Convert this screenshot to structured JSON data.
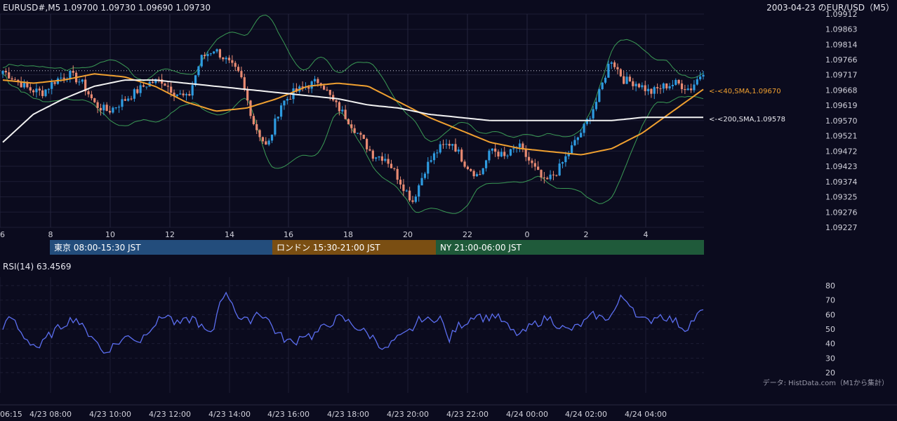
{
  "header": {
    "symbol_line": "EURUSD#,M5 1.09700 1.09730 1.09690 1.09730",
    "date_title": "2003-04-23 のEUR/USD（M5）"
  },
  "price_axis": {
    "ticks": [
      "1.09912",
      "1.09863",
      "1.09814",
      "1.09766",
      "1.09717",
      "1.09668",
      "1.09619",
      "1.09570",
      "1.09521",
      "1.09472",
      "1.09423",
      "1.09374",
      "1.09325",
      "1.09276",
      "1.09227"
    ]
  },
  "hour_axis": {
    "ticks": [
      "6",
      "8",
      "10",
      "12",
      "14",
      "16",
      "18",
      "20",
      "22",
      "0",
      "2",
      "4"
    ]
  },
  "sessions": [
    {
      "label": "東京 08:00-15:30 JST",
      "color": "#234d7c"
    },
    {
      "label": "ロンドン 15:30-21:00 JST",
      "color": "#7a4e12"
    },
    {
      "label": "NY 21:00-06:00 JST",
      "color": "#1f5a3a"
    }
  ],
  "rsi": {
    "title": "RSI(14) 63.4569",
    "ticks": [
      "80",
      "70",
      "60",
      "50",
      "40",
      "30",
      "20"
    ],
    "line_color": "#5b6ef0"
  },
  "credit": "データ: HistData.com（M1から集計）",
  "time_axis": {
    "ticks": [
      "06:15",
      "4/23 08:00",
      "4/23 10:00",
      "4/23 12:00",
      "4/23 14:00",
      "4/23 16:00",
      "4/23 18:00",
      "4/23 20:00",
      "4/23 22:00",
      "4/24 00:00",
      "4/24 02:00",
      "4/24 04:00"
    ]
  },
  "annotations": {
    "sma40_label": "<-<40,SMA,1.09670",
    "sma200_label": "<-<200,SMA,1.09578"
  },
  "colors": {
    "bull": "#2e9be0",
    "bear": "#e88a72",
    "sma40": "#f0a030",
    "sma200": "#f2f2f2",
    "bollinger": "#3a9a55",
    "grid": "#2a2a40"
  },
  "chart_data": [
    {
      "type": "candlestick",
      "title": "EURUSD#,M5 1.09700 1.09730 1.09690 1.09730",
      "x_label": "hour",
      "ylim": [
        1.09227,
        1.09912
      ],
      "series": [
        {
          "name": "40,SMA",
          "last": 1.0967,
          "values": [
            1.097,
            1.0969,
            1.097,
            1.0972,
            1.0971,
            1.0968,
            1.0963,
            1.096,
            1.0961,
            1.0964,
            1.0968,
            1.0969,
            1.0968,
            1.0963,
            1.0958,
            1.0954,
            1.095,
            1.0948,
            1.0947,
            1.0946,
            1.0948,
            1.0953,
            1.096,
            1.0967
          ]
        },
        {
          "name": "200,SMA",
          "last": 1.09578,
          "values": [
            1.095,
            1.0959,
            1.0964,
            1.0968,
            1.097,
            1.097,
            1.0969,
            1.0968,
            1.0967,
            1.0966,
            1.0965,
            1.0964,
            1.0962,
            1.0961,
            1.0959,
            1.0958,
            1.0957,
            1.0957,
            1.0957,
            1.0957,
            1.0957,
            1.0958,
            1.0958,
            1.0958
          ]
        }
      ],
      "close_path": [
        1.0973,
        1.097,
        1.0967,
        1.0966,
        1.097,
        1.0972,
        1.0969,
        1.0962,
        1.096,
        1.0963,
        1.0966,
        1.0969,
        1.097,
        1.0966,
        1.0964,
        1.0977,
        1.098,
        1.0976,
        1.0971,
        1.0956,
        1.0948,
        1.0962,
        1.0966,
        1.0968,
        1.097,
        1.0963,
        1.0958,
        1.0952,
        1.0946,
        1.0945,
        1.0938,
        1.0931,
        1.0942,
        1.0948,
        1.095,
        1.0943,
        1.0939,
        1.0948,
        1.0945,
        1.0949,
        1.0943,
        1.0937,
        1.0941,
        1.0948,
        1.0955,
        1.0964,
        1.0977,
        1.097,
        1.0969,
        1.0966,
        1.0968,
        1.0969,
        1.0967,
        1.0973
      ]
    },
    {
      "type": "line",
      "title": "RSI(14) 63.4569",
      "ylim": [
        20,
        80
      ],
      "series": [
        {
          "name": "RSI(14)",
          "values": [
            52,
            58,
            47,
            41,
            37,
            45,
            50,
            55,
            58,
            49,
            45,
            33,
            38,
            42,
            46,
            41,
            50,
            55,
            61,
            53,
            55,
            58,
            50,
            45,
            74,
            72,
            57,
            55,
            62,
            58,
            48,
            43,
            40,
            47,
            45,
            50,
            54,
            58,
            55,
            51,
            47,
            43,
            35,
            42,
            45,
            50,
            58,
            55,
            60,
            42,
            52,
            55,
            61,
            57,
            60,
            55,
            48,
            46,
            52,
            55,
            58,
            53,
            49,
            51,
            55,
            60,
            57,
            60,
            72,
            68,
            57,
            55,
            60,
            58,
            55,
            50,
            57,
            63
          ]
        }
      ]
    }
  ]
}
